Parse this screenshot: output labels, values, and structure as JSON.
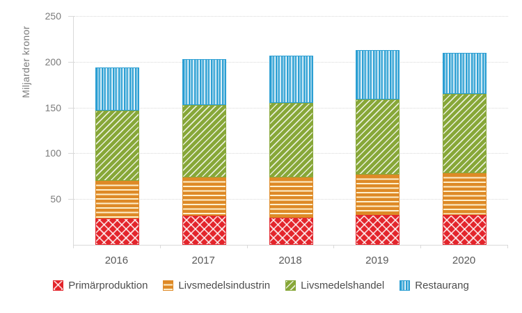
{
  "chart_data": {
    "type": "bar",
    "stacked": true,
    "title": "",
    "ylabel": "Miljarder kronor",
    "xlabel": "",
    "categories": [
      "2016",
      "2017",
      "2018",
      "2019",
      "2020"
    ],
    "series": [
      {
        "name": "Primärproduktion",
        "color": "#E3252C",
        "pattern": "diamond",
        "values": [
          29,
          32,
          30,
          33,
          33
        ]
      },
      {
        "name": "Livsmedelsindustrin",
        "color": "#DE8A27",
        "pattern": "hlines",
        "values": [
          41,
          42,
          44,
          44,
          45
        ]
      },
      {
        "name": "Livsmedelshandel",
        "color": "#87A738",
        "pattern": "diag",
        "values": [
          77,
          79,
          81,
          82,
          87
        ]
      },
      {
        "name": "Restaurang",
        "color": "#2B9FD3",
        "pattern": "vlines",
        "values": [
          47,
          50,
          52,
          54,
          45
        ]
      }
    ],
    "totals": [
      194,
      203,
      207,
      213,
      210
    ],
    "ylim": [
      0,
      250
    ],
    "ytick_interval": 50,
    "ytick_labels": [
      "250",
      "200",
      "150",
      "100",
      "50"
    ],
    "grid": true,
    "gridline_color": "#D8D8D8",
    "axis_text_color": "#7a7a7a",
    "legend_position": "bottom",
    "legend_labels": [
      "Primärproduktion",
      "Livsmedelsindustrin",
      "Livsmedelshandel",
      "Restaurang"
    ]
  }
}
